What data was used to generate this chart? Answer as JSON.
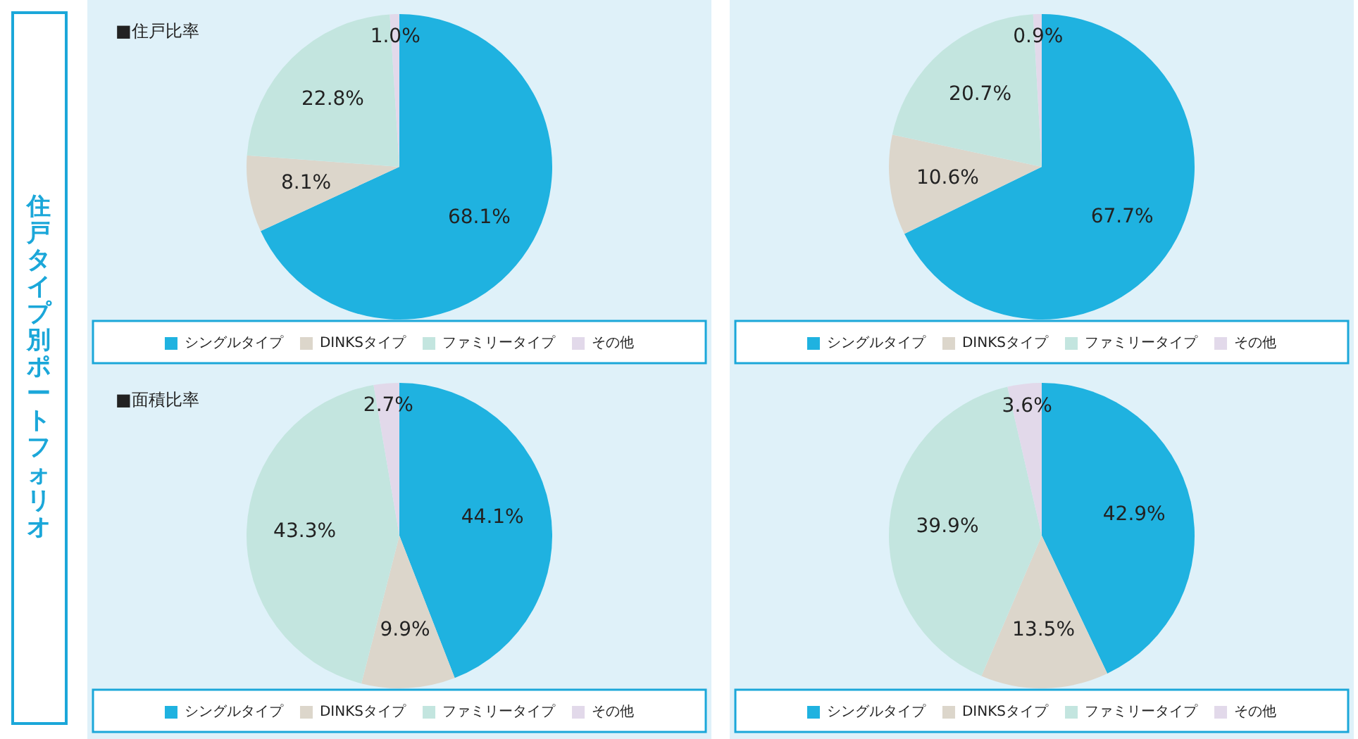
{
  "chart_data": [
    {
      "type": "pie",
      "title": "■住戸比率",
      "annotations": [
        "住戸タイプ別ポートフォリオ"
      ],
      "categories": [
        "シングルタイプ",
        "DINKSタイプ",
        "ファミリータイプ",
        "その他"
      ],
      "values": [
        68.1,
        8.1,
        22.8,
        1.0
      ],
      "value_labels": [
        "68.1%",
        "8.1%",
        "22.8%",
        "1.0%"
      ],
      "colors": [
        "#1fb2e0",
        "#dcd6cb",
        "#c3e5df",
        "#e2d9ea"
      ],
      "legend": "bottom"
    },
    {
      "type": "pie",
      "categories": [
        "シングルタイプ",
        "DINKSタイプ",
        "ファミリータイプ",
        "その他"
      ],
      "values": [
        67.7,
        10.6,
        20.7,
        0.9
      ],
      "value_labels": [
        "67.7%",
        "10.6%",
        "20.7%",
        "0.9%"
      ],
      "colors": [
        "#1fb2e0",
        "#dcd6cb",
        "#c3e5df",
        "#e2d9ea"
      ],
      "legend": "bottom"
    },
    {
      "type": "pie",
      "title": "■面積比率",
      "categories": [
        "シングルタイプ",
        "DINKSタイプ",
        "ファミリータイプ",
        "その他"
      ],
      "values": [
        44.1,
        9.9,
        43.3,
        2.7
      ],
      "value_labels": [
        "44.1%",
        "9.9%",
        "43.3%",
        "2.7%"
      ],
      "colors": [
        "#1fb2e0",
        "#dcd6cb",
        "#c3e5df",
        "#e2d9ea"
      ],
      "legend": "bottom"
    },
    {
      "type": "pie",
      "categories": [
        "シングルタイプ",
        "DINKSタイプ",
        "ファミリータイプ",
        "その他"
      ],
      "values": [
        42.9,
        13.5,
        39.9,
        3.6
      ],
      "value_labels": [
        "42.9%",
        "13.5%",
        "39.9%",
        "3.6%"
      ],
      "colors": [
        "#1fb2e0",
        "#dcd6cb",
        "#c3e5df",
        "#e2d9ea"
      ],
      "legend": "bottom"
    }
  ]
}
